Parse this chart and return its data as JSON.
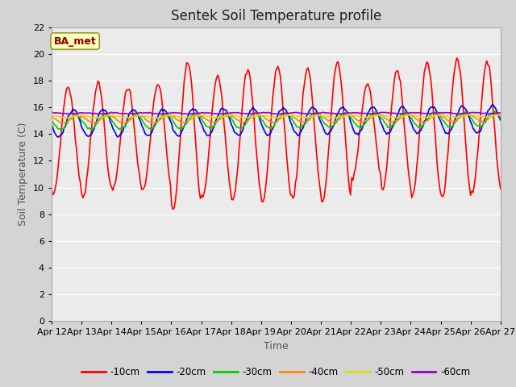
{
  "title": "Sentek Soil Temperature profile",
  "xlabel": "Time",
  "ylabel": "Soil Temperature (C)",
  "annotation": "BA_met",
  "ylim": [
    0,
    22
  ],
  "yticks": [
    0,
    2,
    4,
    6,
    8,
    10,
    12,
    14,
    16,
    18,
    20,
    22
  ],
  "xtick_labels": [
    "Apr 12",
    "Apr 13",
    "Apr 14",
    "Apr 15",
    "Apr 16",
    "Apr 17",
    "Apr 18",
    "Apr 19",
    "Apr 20",
    "Apr 21",
    "Apr 22",
    "Apr 23",
    "Apr 24",
    "Apr 25",
    "Apr 26",
    "Apr 27"
  ],
  "line_colors": [
    "#ff0000",
    "#0000ee",
    "#00cc00",
    "#ff8800",
    "#dddd00",
    "#9900cc"
  ],
  "line_labels": [
    "-10cm",
    "-20cm",
    "-30cm",
    "-40cm",
    "-50cm",
    "-60cm"
  ],
  "fig_bg_color": "#d4d4d4",
  "plot_bg_color": "#ebebeb",
  "grid_color": "#ffffff",
  "title_fontsize": 12,
  "axis_label_fontsize": 9,
  "tick_fontsize": 8,
  "annotation_color": "#880000",
  "annotation_bg": "#ffffbb",
  "annotation_edge": "#999933"
}
